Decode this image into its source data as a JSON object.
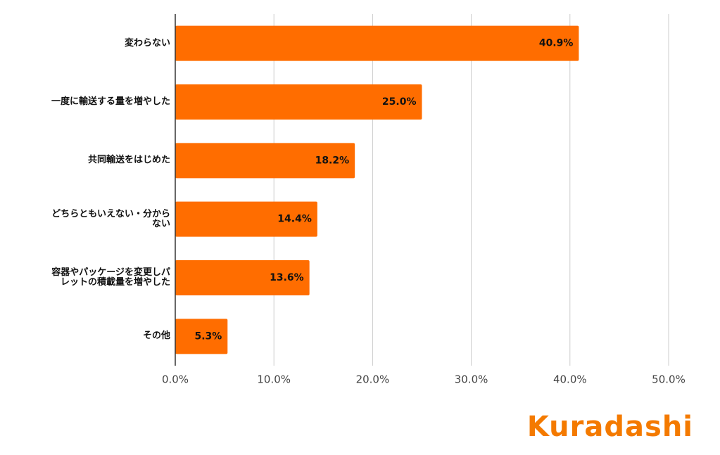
{
  "chart_data": {
    "type": "bar",
    "orientation": "horizontal",
    "categories": [
      "変わらない",
      "一度に輸送する量を増やした",
      "共同輸送をはじめた",
      "どちらともいえない・分からない",
      "容器やパッケージを変更しパレットの積載量を増やした",
      "その他"
    ],
    "values": [
      40.9,
      25.0,
      18.2,
      14.4,
      13.6,
      5.3
    ],
    "value_labels": [
      "40.9%",
      "25.0%",
      "18.2%",
      "14.4%",
      "13.6%",
      "5.3%"
    ],
    "color": "#ff6d00",
    "xlim": [
      0,
      50
    ],
    "xticks": [
      {
        "value": 0,
        "label": "0.0%"
      },
      {
        "value": 10,
        "label": "10.0%"
      },
      {
        "value": 20,
        "label": "20.0%"
      },
      {
        "value": 30,
        "label": "30.0%"
      },
      {
        "value": 40,
        "label": "40.0%"
      },
      {
        "value": 50,
        "label": "50.0%"
      }
    ],
    "grid": true
  },
  "logo": "Kuradashi"
}
